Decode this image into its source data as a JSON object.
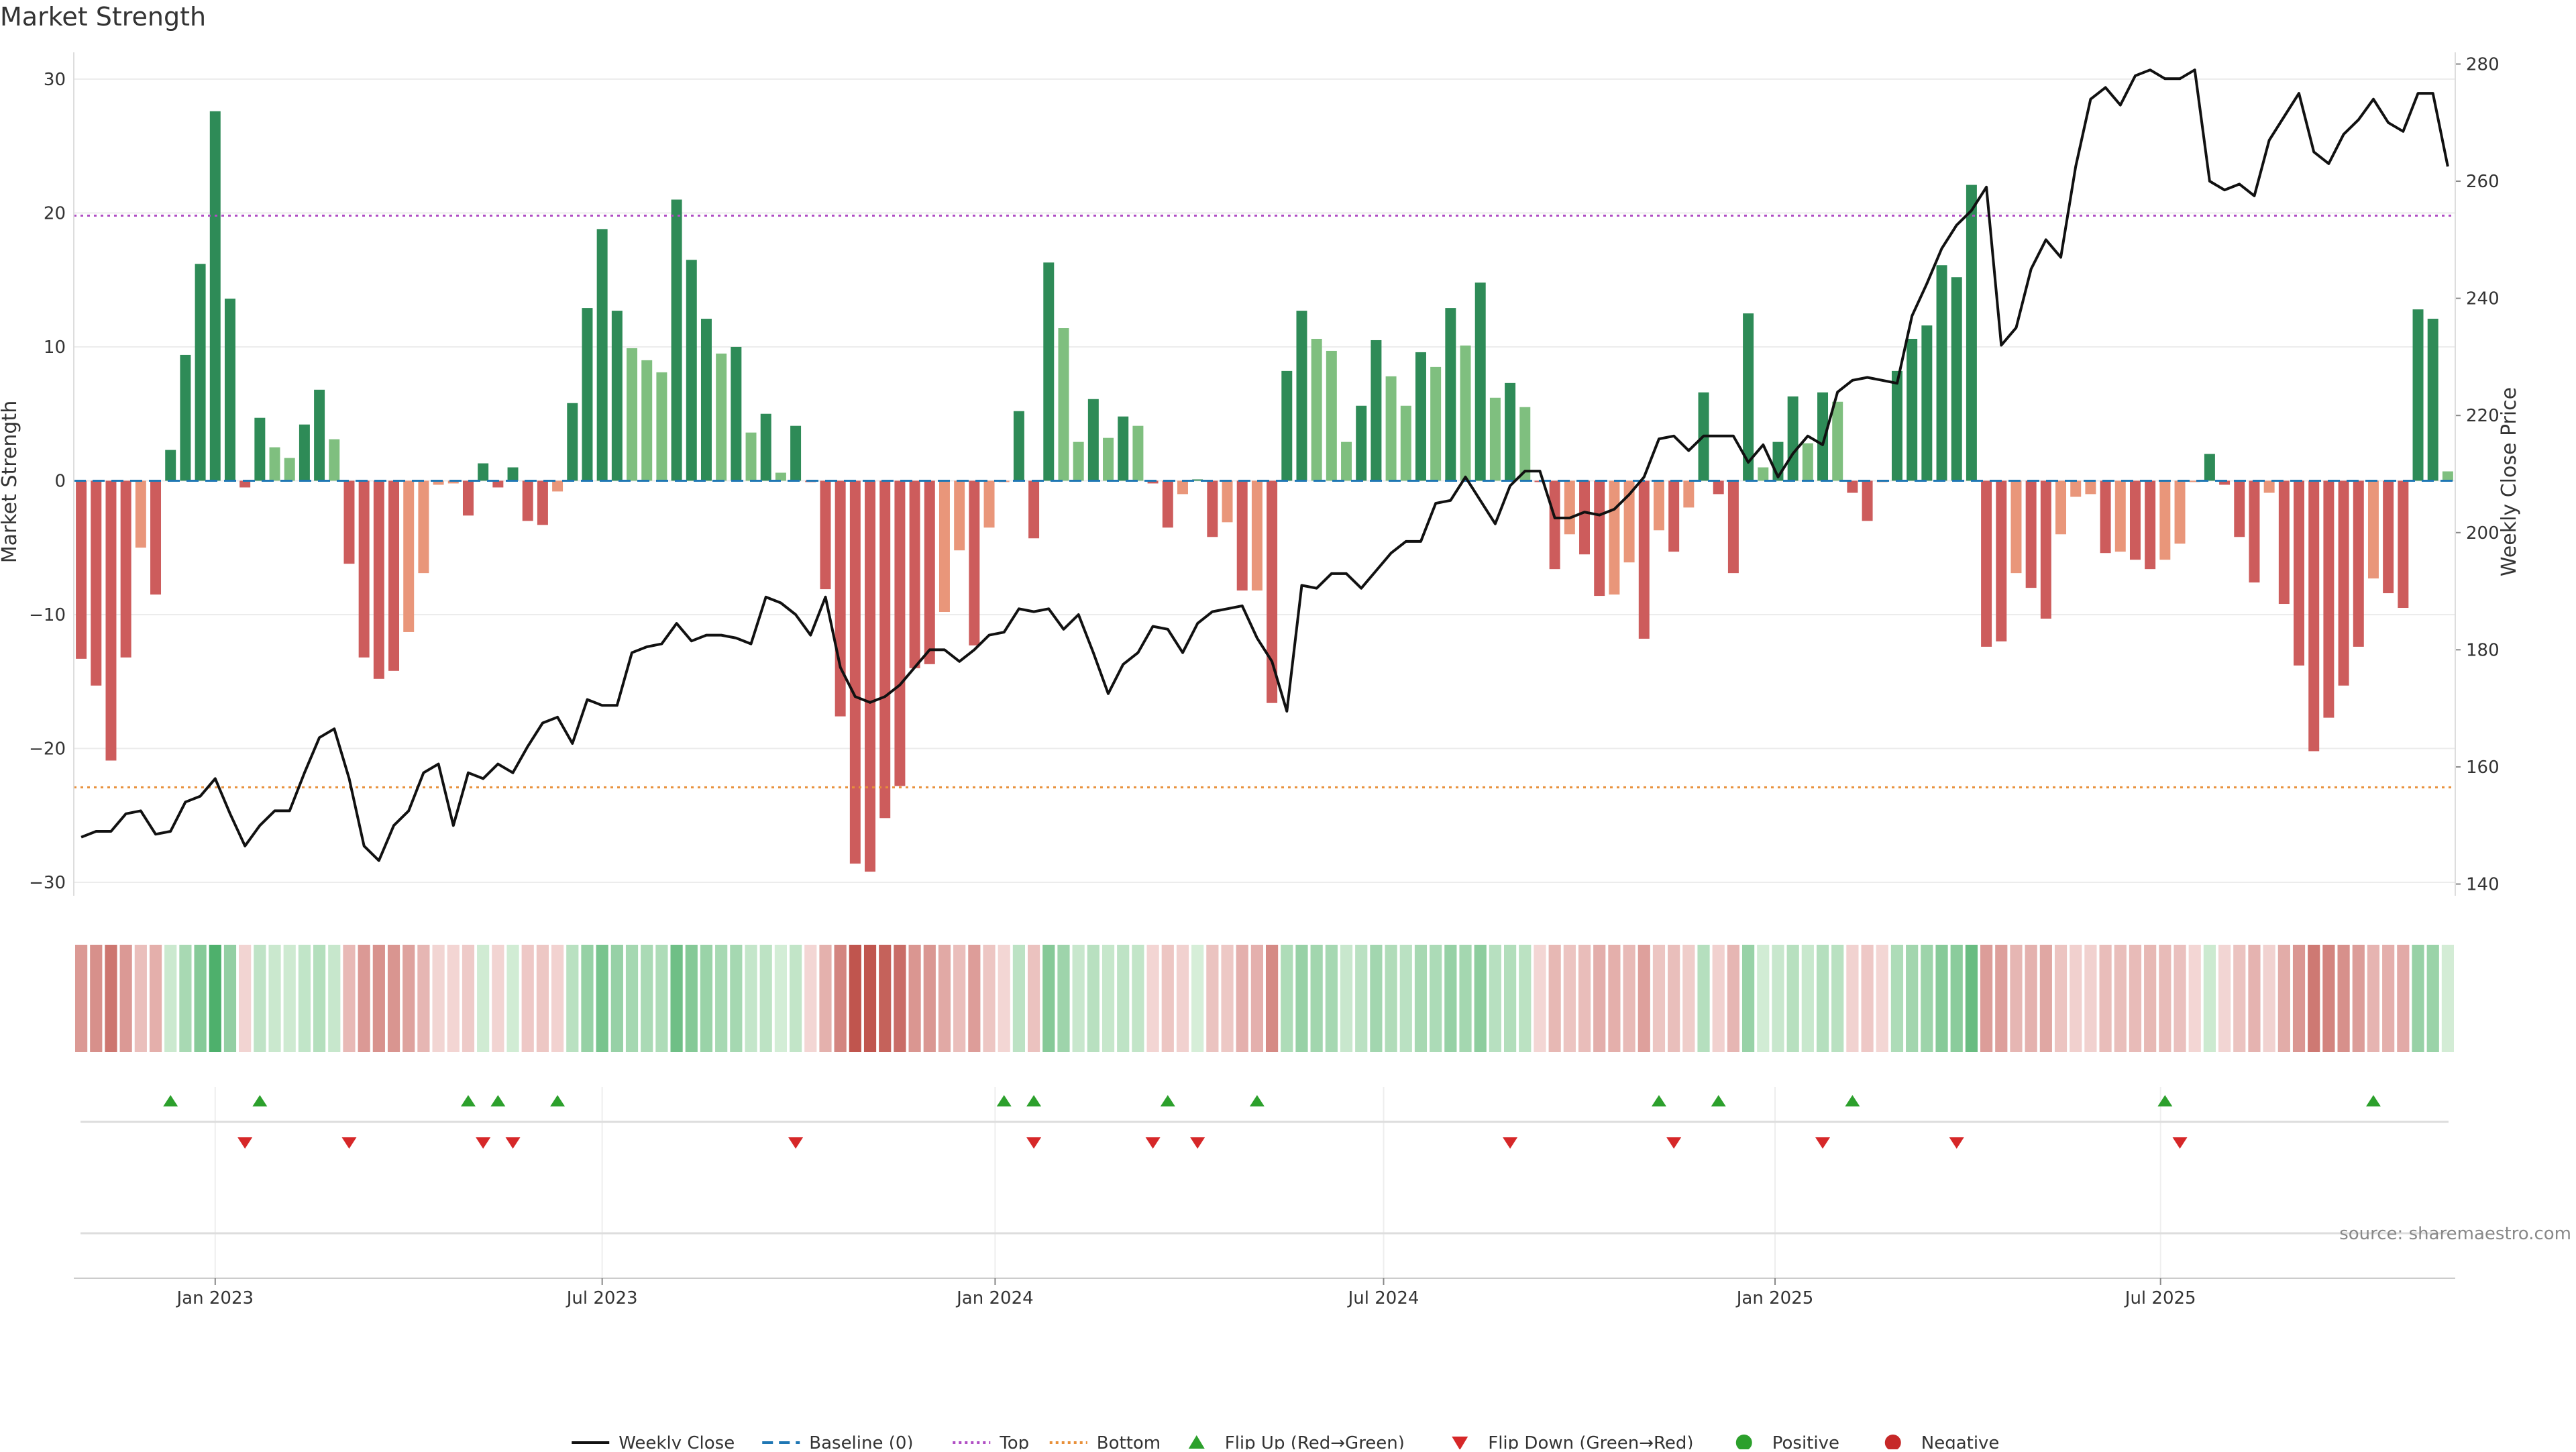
{
  "chart_data": {
    "type": "bar",
    "title": "Market Strength",
    "ylabel_left": "Market Strength",
    "ylabel_right": "Weekly Close Price",
    "ylim_left": [
      -31,
      32
    ],
    "ylim_right": [
      138,
      282
    ],
    "yticks_left": [
      "30",
      "20",
      "10",
      "0",
      "−10",
      "−20",
      "−30"
    ],
    "yticks_left_values": [
      30,
      20,
      10,
      0,
      -10,
      -20,
      -30
    ],
    "yticks_right": [
      "280",
      "260",
      "240",
      "220",
      "200",
      "180",
      "160",
      "140"
    ],
    "yticks_right_values": [
      280,
      260,
      240,
      220,
      200,
      180,
      160,
      140
    ],
    "x_range_weeks": [
      0,
      157
    ],
    "x_ticks": [
      {
        "label": "Jan 2023",
        "week": 9
      },
      {
        "label": "Jul 2023",
        "week": 35
      },
      {
        "label": "Jan 2024",
        "week": 61.4
      },
      {
        "label": "Jul 2024",
        "week": 87.5
      },
      {
        "label": "Jan 2025",
        "week": 113.8
      },
      {
        "label": "Jul 2025",
        "week": 139.7
      }
    ],
    "top_line": 19.8,
    "bottom_line": -22.9,
    "strength": [
      -13.3,
      -15.3,
      -20.9,
      -13.2,
      -5.0,
      -8.5,
      2.3,
      9.4,
      16.2,
      27.6,
      13.6,
      -0.5,
      4.7,
      2.5,
      1.7,
      4.2,
      6.8,
      3.1,
      -6.2,
      -13.2,
      -14.8,
      -14.2,
      -11.3,
      -6.9,
      -0.3,
      -0.2,
      -2.6,
      1.3,
      -0.5,
      1.0,
      -3.0,
      -3.3,
      -0.8,
      5.8,
      12.9,
      18.8,
      12.7,
      9.9,
      9.0,
      8.1,
      21.0,
      16.5,
      12.1,
      9.5,
      10.0,
      3.6,
      5.0,
      0.6,
      4.1,
      -0.1,
      -8.1,
      -17.6,
      -28.6,
      -29.2,
      -25.2,
      -22.8,
      -14.0,
      -13.7,
      -9.8,
      -5.2,
      -12.3,
      -3.5,
      -0.1,
      5.2,
      -4.3,
      16.3,
      11.4,
      2.9,
      6.1,
      3.2,
      4.8,
      4.1,
      -0.2,
      -3.5,
      -1.0,
      0.1,
      -4.2,
      -3.1,
      -8.2,
      -8.2,
      -16.6,
      8.2,
      12.7,
      10.6,
      9.7,
      2.9,
      5.6,
      10.5,
      7.8,
      5.6,
      9.6,
      8.5,
      12.9,
      10.1,
      14.8,
      6.2,
      7.3,
      5.5,
      -0.1,
      -6.6,
      -4.0,
      -5.5,
      -8.6,
      -8.5,
      -6.1,
      -11.8,
      -3.7,
      -5.3,
      -2.0,
      6.6,
      -1.0,
      -6.9,
      12.5,
      1.0,
      2.9,
      6.3,
      2.8,
      6.6,
      5.9,
      -0.9,
      -3.0,
      -0.1,
      8.2,
      10.6,
      11.6,
      16.1,
      15.2,
      22.1,
      -12.4,
      -12.0,
      -6.9,
      -8.0,
      -10.3,
      -4.0,
      -1.2,
      -1.0,
      -5.4,
      -5.3,
      -5.9,
      -6.6,
      -5.9,
      -4.7,
      -0.1,
      2.0,
      -0.3,
      -4.2,
      -7.6,
      -0.9,
      -9.2,
      -13.8,
      -20.2,
      -17.7,
      -15.3,
      -12.4,
      -7.3,
      -8.4,
      -9.5,
      12.8,
      12.1,
      0.7
    ],
    "price": [
      148,
      149,
      149,
      152,
      152.5,
      148.5,
      149,
      154,
      155,
      158,
      152,
      146.5,
      150,
      152.5,
      152.5,
      159,
      165,
      166.5,
      158,
      146.5,
      144,
      150,
      152.5,
      159,
      160.5,
      150,
      159,
      158,
      160.5,
      159,
      163.5,
      167.5,
      168.5,
      164,
      171.5,
      170.5,
      170.5,
      179.5,
      180.5,
      181,
      184.5,
      181.5,
      182.5,
      182.5,
      182,
      181,
      189,
      188,
      186,
      182.5,
      189,
      177,
      172,
      171,
      172,
      174,
      177,
      180,
      180,
      178,
      180,
      182.5,
      183,
      187,
      186.5,
      187,
      183.5,
      186,
      179.5,
      172.5,
      177.5,
      179.5,
      184,
      183.5,
      179.5,
      184.5,
      186.5,
      187,
      187.5,
      182,
      178,
      169.5,
      191,
      190.5,
      193,
      193,
      190.5,
      193.5,
      196.5,
      198.5,
      198.5,
      205,
      205.5,
      209.5,
      205.5,
      201.5,
      208,
      210.5,
      210.5,
      202.5,
      202.5,
      203.5,
      203,
      204,
      206.5,
      209.5,
      216,
      216.5,
      214,
      216.5,
      216.5,
      216.5,
      212,
      215,
      209.5,
      213.5,
      216.5,
      215,
      224,
      226,
      226.5,
      226,
      225.5,
      237,
      242.5,
      248.5,
      252.5,
      255,
      259,
      232,
      235,
      245,
      250,
      247,
      262.5,
      274,
      276,
      273,
      278,
      279,
      277.5,
      277.5,
      279,
      260,
      258.5,
      259.5,
      257.5,
      267,
      271,
      275,
      265,
      263,
      268,
      270.5,
      274,
      270,
      268.5,
      275,
      275,
      262.5
    ],
    "series": [
      {
        "name": "Weekly Close",
        "style": "solid",
        "color": "#111111"
      },
      {
        "name": "Baseline (0)",
        "style": "dashed",
        "color": "#1f77b4"
      },
      {
        "name": "Top",
        "style": "dotted",
        "color": "#b04ec4"
      },
      {
        "name": "Bottom",
        "style": "dotted",
        "color": "#e8903a"
      }
    ],
    "flip_up_weeks": [
      6,
      12,
      26,
      28,
      32,
      62,
      64,
      73,
      79,
      106,
      110,
      119,
      140,
      154
    ],
    "flip_down_weeks": [
      11,
      18,
      27,
      29,
      48,
      64,
      72,
      75,
      96,
      107,
      117,
      126,
      141
    ],
    "legend": [
      {
        "label": "Weekly Close",
        "marker": "line-solid"
      },
      {
        "label": "Baseline (0)",
        "marker": "line-dashed"
      },
      {
        "label": "Top",
        "marker": "line-dotted"
      },
      {
        "label": "Bottom",
        "marker": "line-dotted"
      },
      {
        "label": "Flip Up (Red→Green)",
        "marker": "triangle-up"
      },
      {
        "label": "Flip Down (Green→Red)",
        "marker": "triangle-down"
      },
      {
        "label": "Positive",
        "marker": "circle"
      },
      {
        "label": "Negative",
        "marker": "circle"
      }
    ],
    "source": "source: sharemaestro.com"
  },
  "colors": {
    "pos_strong": "#2e8b57",
    "pos_light": "#7fbf7f",
    "neg_strong": "#cd5c5c",
    "neg_light": "#e9967a",
    "price_line": "#111111",
    "baseline": "#1f77b4",
    "top": "#b04ec4",
    "bottom": "#e8903a",
    "flip_up": "#2ca02c",
    "flip_down": "#d62728",
    "positive": "#2ca02c",
    "negative": "#c62828"
  }
}
